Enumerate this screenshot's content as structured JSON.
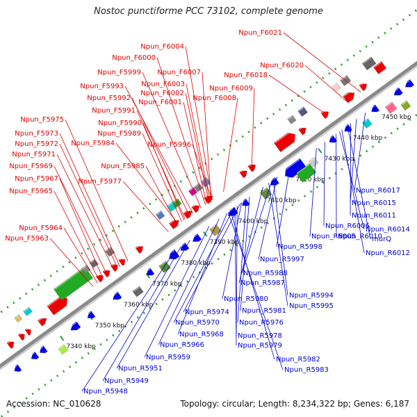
{
  "title": "Nostoc punctiforme PCC 73102, complete genome",
  "footer": {
    "accession": "Accession: NC_010628",
    "summary": "Topology: circular; Length: 8,234,322 bp; Genes: 6,187"
  },
  "ticks": [
    "7340 kbp",
    "7350 kbp",
    "7360 kbp",
    "7370 kbp",
    "7380 kbp",
    "7390 kbp",
    "7400 kbp",
    "7410 kbp",
    "7420 kbp",
    "7430 kbp",
    "7440 kbp",
    "7450 kbp"
  ],
  "forward_labels": [
    "Npun_F6021",
    "Npun_F6020",
    "Npun_F6018",
    "Npun_F6004",
    "Npun_F6000",
    "Npun_F6007",
    "Npun_F5999",
    "Npun_F6003",
    "Npun_F6009",
    "Npun_F5993",
    "Npun_F6002",
    "Npun_F6008",
    "Npun_F5992",
    "Npun_F6001",
    "Npun_F5991",
    "Npun_F5990",
    "Npun_F5989",
    "Npun_F5975",
    "Npun_F5984",
    "Npun_F5996",
    "Npun_F5973",
    "Npun_F5972",
    "Npun_F5971",
    "Npun_F5969",
    "Npun_F5985",
    "Npun_F5967",
    "Npun_F5977",
    "Npun_F5965",
    "Npun_F5964",
    "Npun_F5963"
  ],
  "reverse_labels": [
    "Npun_R6017",
    "Npun_R6015",
    "Npun_R6011",
    "Npun_R6014",
    "murQ",
    "Npun_R6006",
    "Npun_R6010",
    "Npun_R6005",
    "Npun_R6012",
    "Npun_R5998",
    "Npun_R5997",
    "Npun_R5988",
    "Npun_R5987",
    "Npun_R5994",
    "Npun_R5995",
    "Npun_R5980",
    "Npun_R5981",
    "Npun_R5974",
    "Npun_R5976",
    "Npun_R5970",
    "Npun_R5968",
    "Npun_R5966",
    "Npun_R5978",
    "Npun_R5979",
    "Npun_R5959",
    "Npun_R5982",
    "Npun_R5951",
    "Npun_R5983",
    "Npun_R5949",
    "Npun_R5948"
  ]
}
